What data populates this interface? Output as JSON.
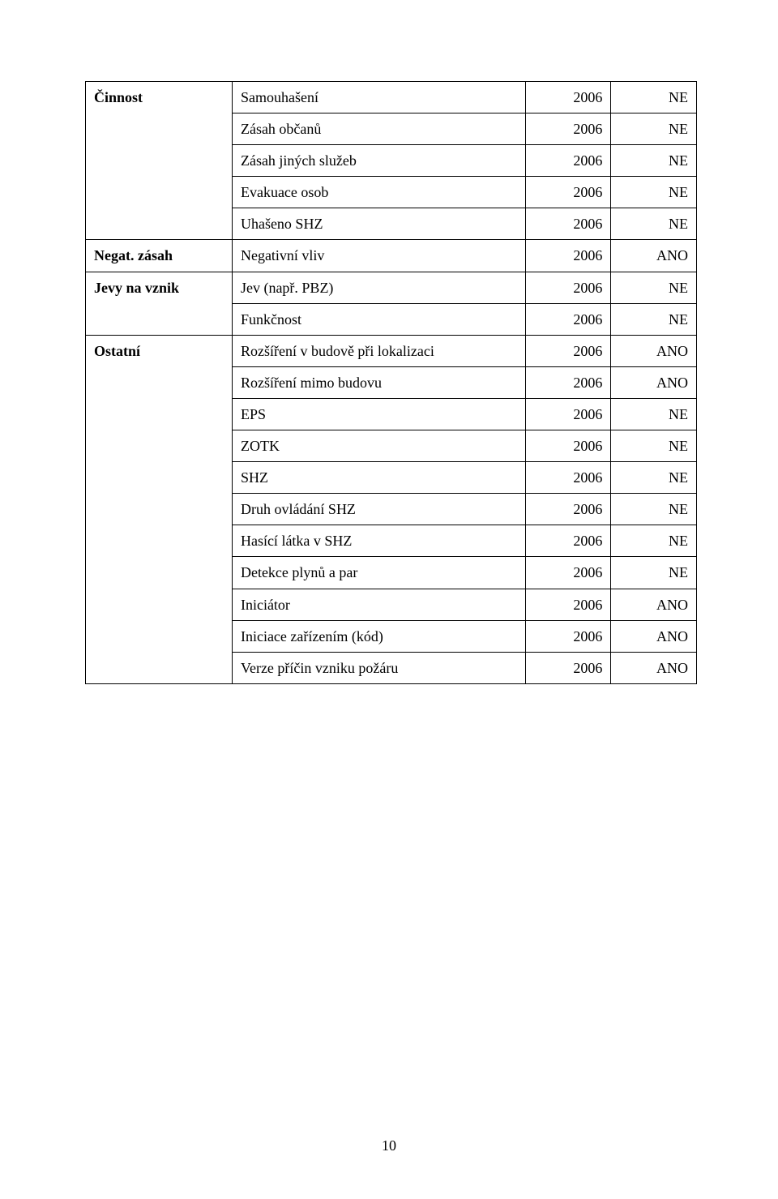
{
  "table": {
    "border_color": "#000000",
    "font": {
      "family": "Times New Roman",
      "size_pt": 12,
      "bold_labels_weight": "bold"
    },
    "columns": {
      "widths_pct": [
        24,
        48,
        14,
        14
      ]
    },
    "groups": [
      {
        "category": "Činnost",
        "rows": [
          {
            "label": "Samouhašení",
            "year": "2006",
            "value": "NE"
          },
          {
            "label": "Zásah občanů",
            "year": "2006",
            "value": "NE"
          },
          {
            "label": "Zásah jiných služeb",
            "year": "2006",
            "value": "NE"
          },
          {
            "label": "Evakuace osob",
            "year": "2006",
            "value": "NE"
          },
          {
            "label": "Uhašeno SHZ",
            "year": "2006",
            "value": "NE"
          }
        ]
      },
      {
        "category": "Negat. zásah",
        "rows": [
          {
            "label": "Negativní vliv",
            "year": "2006",
            "value": "ANO"
          }
        ]
      },
      {
        "category": "Jevy na vznik",
        "rows": [
          {
            "label": "Jev (např. PBZ)",
            "year": "2006",
            "value": "NE"
          },
          {
            "label": "Funkčnost",
            "year": "2006",
            "value": "NE"
          }
        ]
      },
      {
        "category": "Ostatní",
        "rows": [
          {
            "label": "Rozšíření v budově při lokalizaci",
            "year": "2006",
            "value": "ANO"
          },
          {
            "label": "Rozšíření mimo budovu",
            "year": "2006",
            "value": "ANO"
          },
          {
            "label": "EPS",
            "year": "2006",
            "value": "NE"
          },
          {
            "label": "ZOTK",
            "year": "2006",
            "value": "NE"
          },
          {
            "label": "SHZ",
            "year": "2006",
            "value": "NE"
          },
          {
            "label": "Druh ovládání SHZ",
            "year": "2006",
            "value": "NE"
          },
          {
            "label": "Hasící látka v SHZ",
            "year": "2006",
            "value": "NE"
          },
          {
            "label": "Detekce plynů a par",
            "year": "2006",
            "value": "NE"
          },
          {
            "label": "Iniciátor",
            "year": "2006",
            "value": "ANO"
          },
          {
            "label": "Iniciace zařízením (kód)",
            "year": "2006",
            "value": "ANO"
          },
          {
            "label": "Verze příčin vzniku požáru",
            "year": "2006",
            "value": "ANO"
          }
        ]
      }
    ]
  },
  "page_number": "10",
  "colors": {
    "background": "#ffffff",
    "text": "#000000",
    "border": "#000000"
  }
}
